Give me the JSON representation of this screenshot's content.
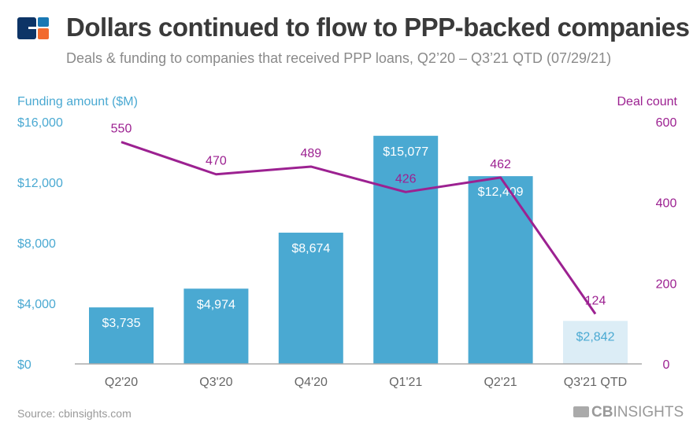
{
  "header": {
    "title": "Dollars continued to flow to PPP-backed companies",
    "subtitle": "Deals & funding to companies that received PPP loans, Q2’20 – Q3’21 QTD (07/29/21)"
  },
  "footer": {
    "source": "Source: cbinsights.com",
    "brand_bold": "CB",
    "brand_rest": "INSIGHTS"
  },
  "colors": {
    "bar": "#4aa9d2",
    "bar_partial": "#dcedf6",
    "line": "#9c2191",
    "left_axis": "#4aa9d2",
    "right_axis": "#9c2191",
    "title": "#3a3a3a",
    "logo_navy": "#0d3466",
    "logo_blue": "#1a78b4",
    "logo_orange": "#f26a2e"
  },
  "chart_data": {
    "type": "bar+line",
    "categories": [
      "Q2'20",
      "Q3'20",
      "Q4'20",
      "Q1'21",
      "Q2'21",
      "Q3'21 QTD"
    ],
    "left_axis": {
      "label": "Funding amount ($M)",
      "range": [
        0,
        16000
      ],
      "ticks": [
        0,
        4000,
        8000,
        12000,
        16000
      ],
      "tick_labels": [
        "$0",
        "$4,000",
        "$8,000",
        "$12,000",
        "$16,000"
      ]
    },
    "right_axis": {
      "label": "Deal count",
      "range": [
        0,
        600
      ],
      "ticks": [
        0,
        200,
        400,
        600
      ],
      "tick_labels": [
        "0",
        "200",
        "400",
        "600"
      ]
    },
    "series": [
      {
        "type": "bar",
        "axis": "left",
        "values": [
          3735,
          4974,
          8674,
          15077,
          12409,
          2842
        ],
        "labels": [
          "$3,735",
          "$4,974",
          "$8,674",
          "$15,077",
          "$12,409",
          "$2,842"
        ],
        "partial_last": true
      },
      {
        "type": "line",
        "axis": "right",
        "values": [
          550,
          470,
          489,
          426,
          462,
          124
        ],
        "labels": [
          "550",
          "470",
          "489",
          "426",
          "462",
          "124"
        ]
      }
    ],
    "grid": false,
    "legend": "none"
  }
}
